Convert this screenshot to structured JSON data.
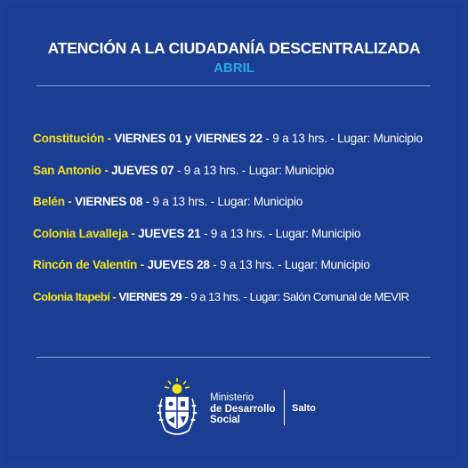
{
  "header": {
    "title": "ATENCIÓN A LA CIUDADANÍA DESCENTRALIZADA",
    "month": "ABRIL"
  },
  "schedule": [
    {
      "place": "Constitución -",
      "date": " VIERNES 01 y VIERNES 22",
      "details": " - 9 a 13 hrs. - Lugar: Municipio"
    },
    {
      "place": "San Antonio -",
      "date": " JUEVES 07",
      "details": " -  9 a 13 hrs. - Lugar: Municipio"
    },
    {
      "place": "Belén -",
      "date": " VIERNES 08",
      "details": " -  9 a 13 hrs. - Lugar: Municipio"
    },
    {
      "place": "Colonia Lavalleja -",
      "date": " JUEVES 21",
      "details": " - 9 a 13 hrs. - Lugar: Municipio"
    },
    {
      "place": "Rincón de Valentín -",
      "date": " JUEVES 28",
      "details": " - 9 a 13 hrs. - Lugar: Municipio"
    },
    {
      "place": "Colonia Itapebí -",
      "date": " VIERNES 29",
      "details": " - 9 a 13 hrs. - Lugar: Salón Comunal de MEVIR"
    }
  ],
  "footer": {
    "org_line1": "Ministerio",
    "org_line2": "de Desarrollo",
    "org_line3": "Social",
    "region": "Salto",
    "logo_icon": "uruguay-coat-of-arms-icon"
  },
  "colors": {
    "background": "#1b3d92",
    "place": "#f3e21c",
    "month": "#29a8e8"
  }
}
